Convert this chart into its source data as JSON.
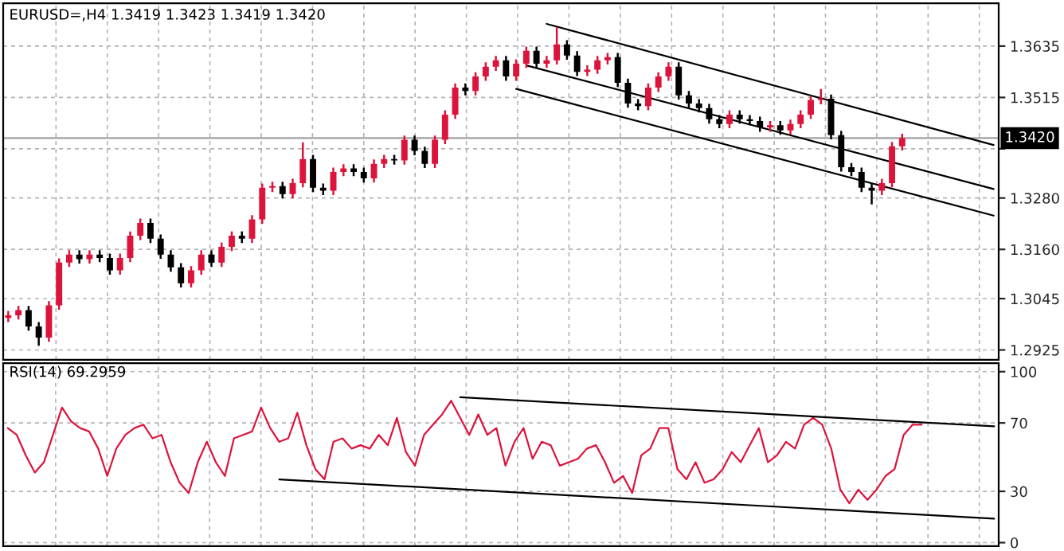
{
  "chart_data": [
    {
      "type": "candlestick",
      "title": "EURUSD=,H4 1.3419 1.3423 1.3419 1.3420",
      "categories": [
        null,
        null,
        null,
        null,
        null,
        null,
        null,
        null,
        null,
        null,
        null,
        null,
        null,
        null,
        null,
        null,
        null,
        null,
        null,
        null,
        null,
        null,
        null,
        null,
        null,
        null,
        null,
        null,
        null,
        null,
        null,
        null,
        null,
        null,
        null,
        null,
        null,
        null,
        null,
        null,
        null,
        null,
        null,
        null,
        null,
        null,
        null,
        null,
        null,
        null,
        null,
        null,
        null,
        null,
        null,
        null,
        null,
        null,
        null,
        null,
        null,
        null,
        null,
        null,
        null,
        null,
        null,
        null,
        null,
        null,
        null,
        null,
        null,
        null,
        null,
        null,
        null,
        null,
        null,
        null,
        null,
        null,
        null,
        null,
        null,
        null,
        null,
        null,
        null,
        null,
        null,
        null,
        null,
        null,
        null,
        null,
        null,
        null
      ],
      "ohlc": [
        [
          1.3,
          1.3016,
          1.299,
          1.3006
        ],
        [
          1.3006,
          1.3028,
          1.2996,
          1.3018
        ],
        [
          1.3018,
          1.3028,
          1.297,
          1.298
        ],
        [
          1.298,
          1.299,
          1.2935,
          1.2954
        ],
        [
          1.2954,
          1.3039,
          1.2944,
          1.3029
        ],
        [
          1.3029,
          1.3139,
          1.3019,
          1.3129
        ],
        [
          1.3129,
          1.3158,
          1.3119,
          1.3148
        ],
        [
          1.3148,
          1.3158,
          1.3127,
          1.3137
        ],
        [
          1.3137,
          1.3158,
          1.3127,
          1.3148
        ],
        [
          1.3148,
          1.3158,
          1.313,
          1.314
        ],
        [
          1.314,
          1.315,
          1.3101,
          1.3111
        ],
        [
          1.3111,
          1.315,
          1.3101,
          1.314
        ],
        [
          1.314,
          1.3202,
          1.313,
          1.3192
        ],
        [
          1.3192,
          1.3232,
          1.3182,
          1.3222
        ],
        [
          1.3222,
          1.3232,
          1.3175,
          1.3185
        ],
        [
          1.3185,
          1.3195,
          1.3138,
          1.3148
        ],
        [
          1.3148,
          1.3158,
          1.3108,
          1.3118
        ],
        [
          1.3118,
          1.3128,
          1.3071,
          1.3081
        ],
        [
          1.3081,
          1.3121,
          1.3071,
          1.3111
        ],
        [
          1.3111,
          1.3158,
          1.3101,
          1.3148
        ],
        [
          1.3148,
          1.3158,
          1.3119,
          1.3129
        ],
        [
          1.3129,
          1.3176,
          1.3119,
          1.3166
        ],
        [
          1.3166,
          1.3202,
          1.3156,
          1.3192
        ],
        [
          1.3192,
          1.3202,
          1.3175,
          1.3185
        ],
        [
          1.3185,
          1.324,
          1.3175,
          1.323
        ],
        [
          1.323,
          1.3314,
          1.322,
          1.3304
        ],
        [
          1.3304,
          1.3318,
          1.3294,
          1.3308
        ],
        [
          1.3308,
          1.3318,
          1.3279,
          1.3289
        ],
        [
          1.3289,
          1.3325,
          1.3279,
          1.3315
        ],
        [
          1.3315,
          1.341,
          1.3305,
          1.3371
        ],
        [
          1.3371,
          1.3381,
          1.3294,
          1.3304
        ],
        [
          1.3304,
          1.3314,
          1.3287,
          1.3297
        ],
        [
          1.3297,
          1.3351,
          1.3287,
          1.3341
        ],
        [
          1.3341,
          1.3359,
          1.3331,
          1.3349
        ],
        [
          1.3349,
          1.3359,
          1.3331,
          1.3341
        ],
        [
          1.3341,
          1.3351,
          1.3316,
          1.3326
        ],
        [
          1.3326,
          1.337,
          1.3316,
          1.336
        ],
        [
          1.336,
          1.3381,
          1.335,
          1.3371
        ],
        [
          1.3371,
          1.3381,
          1.3358,
          1.3368
        ],
        [
          1.3368,
          1.3426,
          1.3358,
          1.3416
        ],
        [
          1.3416,
          1.3426,
          1.338,
          1.339
        ],
        [
          1.339,
          1.34,
          1.335,
          1.336
        ],
        [
          1.336,
          1.3426,
          1.335,
          1.3416
        ],
        [
          1.3416,
          1.3485,
          1.3406,
          1.3475
        ],
        [
          1.3475,
          1.3548,
          1.3465,
          1.3538
        ],
        [
          1.3538,
          1.3548,
          1.352,
          1.353
        ],
        [
          1.353,
          1.3574,
          1.352,
          1.3564
        ],
        [
          1.3564,
          1.3597,
          1.3554,
          1.3587
        ],
        [
          1.3587,
          1.3612,
          1.3577,
          1.3602
        ],
        [
          1.3602,
          1.3612,
          1.3554,
          1.3564
        ],
        [
          1.3564,
          1.3604,
          1.3554,
          1.3594
        ],
        [
          1.3594,
          1.3634,
          1.3584,
          1.3624
        ],
        [
          1.3624,
          1.3634,
          1.3584,
          1.3594
        ],
        [
          1.3594,
          1.3612,
          1.3584,
          1.3602
        ],
        [
          1.3602,
          1.368,
          1.3592,
          1.3639
        ],
        [
          1.3639,
          1.3649,
          1.3603,
          1.3613
        ],
        [
          1.3613,
          1.3623,
          1.3565,
          1.3575
        ],
        [
          1.3575,
          1.359,
          1.3565,
          1.358
        ],
        [
          1.358,
          1.3612,
          1.357,
          1.3602
        ],
        [
          1.3602,
          1.3619,
          1.3592,
          1.3609
        ],
        [
          1.3609,
          1.3619,
          1.3539,
          1.3549
        ],
        [
          1.3549,
          1.3559,
          1.3491,
          1.3501
        ],
        [
          1.3501,
          1.3511,
          1.3485,
          1.3495
        ],
        [
          1.3495,
          1.3548,
          1.3485,
          1.3538
        ],
        [
          1.3538,
          1.3574,
          1.3528,
          1.3564
        ],
        [
          1.3564,
          1.3597,
          1.3554,
          1.3587
        ],
        [
          1.3587,
          1.3597,
          1.351,
          1.352
        ],
        [
          1.352,
          1.353,
          1.3491,
          1.3501
        ],
        [
          1.3501,
          1.3511,
          1.348,
          1.349
        ],
        [
          1.349,
          1.35,
          1.3454,
          1.3464
        ],
        [
          1.3464,
          1.3474,
          1.3443,
          1.3453
        ],
        [
          1.3453,
          1.3485,
          1.3443,
          1.3475
        ],
        [
          1.3475,
          1.3485,
          1.3454,
          1.3464
        ],
        [
          1.3464,
          1.3474,
          1.345,
          1.346
        ],
        [
          1.346,
          1.347,
          1.3435,
          1.3445
        ],
        [
          1.3445,
          1.346,
          1.3435,
          1.345
        ],
        [
          1.345,
          1.346,
          1.3428,
          1.3438
        ],
        [
          1.3438,
          1.3463,
          1.3428,
          1.3453
        ],
        [
          1.3453,
          1.3485,
          1.3443,
          1.3475
        ],
        [
          1.3475,
          1.3519,
          1.3465,
          1.3509
        ],
        [
          1.3509,
          1.3535,
          1.3499,
          1.3512
        ],
        [
          1.3512,
          1.3522,
          1.3417,
          1.3427
        ],
        [
          1.3427,
          1.3437,
          1.3342,
          1.3352
        ],
        [
          1.3352,
          1.3362,
          1.3331,
          1.3341
        ],
        [
          1.3341,
          1.3351,
          1.3294,
          1.3304
        ],
        [
          1.3304,
          1.3314,
          1.3265,
          1.3297
        ],
        [
          1.3297,
          1.3325,
          1.3287,
          1.3315
        ],
        [
          1.3315,
          1.3411,
          1.3305,
          1.3401
        ],
        [
          1.3401,
          1.343,
          1.3391,
          1.342
        ],
        null,
        null,
        null,
        null,
        null,
        null,
        null,
        null,
        null
      ],
      "colors": [
        "#dc143c",
        "#dc143c",
        "#000000",
        "#000000",
        "#dc143c",
        "#dc143c",
        "#dc143c",
        "#000000",
        "#dc143c",
        "#000000",
        "#000000",
        "#dc143c",
        "#dc143c",
        "#dc143c",
        "#000000",
        "#000000",
        "#000000",
        "#000000",
        "#dc143c",
        "#dc143c",
        "#000000",
        "#dc143c",
        "#dc143c",
        "#000000",
        "#dc143c",
        "#dc143c",
        "#dc143c",
        "#000000",
        "#dc143c",
        "#dc143c",
        "#000000",
        "#000000",
        "#dc143c",
        "#dc143c",
        "#000000",
        "#000000",
        "#dc143c",
        "#dc143c",
        "#000000",
        "#dc143c",
        "#000000",
        "#000000",
        "#dc143c",
        "#dc143c",
        "#dc143c",
        "#000000",
        "#dc143c",
        "#dc143c",
        "#dc143c",
        "#000000",
        "#dc143c",
        "#dc143c",
        "#000000",
        "#dc143c",
        "#dc143c",
        "#000000",
        "#000000",
        "#dc143c",
        "#dc143c",
        "#dc143c",
        "#000000",
        "#000000",
        "#000000",
        "#dc143c",
        "#dc143c",
        "#dc143c",
        "#000000",
        "#000000",
        "#000000",
        "#000000",
        "#000000",
        "#dc143c",
        "#000000",
        "#000000",
        "#000000",
        "#dc143c",
        "#000000",
        "#dc143c",
        "#dc143c",
        "#dc143c",
        "#dc143c",
        "#000000",
        "#000000",
        "#000000",
        "#000000",
        "#000000",
        "#dc143c",
        "#dc143c",
        "#dc143c",
        null,
        null,
        null,
        null,
        null,
        null,
        null,
        null,
        null
      ],
      "series": [
        {
          "type": "line",
          "color": "#000000",
          "values": [
            null,
            null,
            null,
            null,
            null,
            null,
            null,
            null,
            null,
            null,
            null,
            null,
            null,
            null,
            null,
            null,
            null,
            null,
            null,
            null,
            null,
            null,
            null,
            null,
            null,
            null,
            null,
            null,
            null,
            null,
            null,
            null,
            null,
            null,
            null,
            null,
            null,
            null,
            null,
            null,
            null,
            null,
            null,
            null,
            null,
            null,
            null,
            null,
            null,
            null,
            null,
            null,
            null,
            1.3687,
            null,
            null,
            null,
            null,
            null,
            null,
            null,
            null,
            null,
            null,
            null,
            null,
            null,
            null,
            null,
            null,
            null,
            null,
            null,
            null,
            null,
            null,
            null,
            null,
            null,
            null,
            null,
            null,
            null,
            null,
            null,
            null,
            null,
            null,
            null,
            null,
            null,
            null,
            null,
            null,
            null,
            null,
            null,
            1.3404
          ]
        },
        {
          "type": "line",
          "color": "#000000",
          "values": [
            null,
            null,
            null,
            null,
            null,
            null,
            null,
            null,
            null,
            null,
            null,
            null,
            null,
            null,
            null,
            null,
            null,
            null,
            null,
            null,
            null,
            null,
            null,
            null,
            null,
            null,
            null,
            null,
            null,
            null,
            null,
            null,
            null,
            null,
            null,
            null,
            null,
            null,
            null,
            null,
            null,
            null,
            null,
            null,
            null,
            null,
            null,
            null,
            null,
            null,
            null,
            1.359,
            null,
            null,
            null,
            null,
            null,
            null,
            null,
            null,
            null,
            null,
            null,
            null,
            null,
            null,
            null,
            null,
            null,
            null,
            null,
            null,
            null,
            null,
            null,
            null,
            null,
            null,
            null,
            null,
            null,
            null,
            null,
            null,
            null,
            null,
            null,
            null,
            null,
            null,
            null,
            null,
            null,
            null,
            null,
            null,
            null,
            1.3301
          ]
        },
        {
          "type": "line",
          "color": "#000000",
          "values": [
            null,
            null,
            null,
            null,
            null,
            null,
            null,
            null,
            null,
            null,
            null,
            null,
            null,
            null,
            null,
            null,
            null,
            null,
            null,
            null,
            null,
            null,
            null,
            null,
            null,
            null,
            null,
            null,
            null,
            null,
            null,
            null,
            null,
            null,
            null,
            null,
            null,
            null,
            null,
            null,
            null,
            null,
            null,
            null,
            null,
            null,
            null,
            null,
            null,
            null,
            1.3535,
            null,
            null,
            null,
            null,
            null,
            null,
            null,
            null,
            null,
            null,
            null,
            null,
            null,
            null,
            null,
            null,
            null,
            null,
            null,
            null,
            null,
            null,
            null,
            null,
            null,
            null,
            null,
            null,
            null,
            null,
            null,
            null,
            null,
            null,
            null,
            null,
            null,
            null,
            null,
            null,
            null,
            null,
            null,
            null,
            null,
            null,
            1.3239
          ]
        }
      ],
      "ylim": [
        1.2902,
        1.3735
      ],
      "yticks": [
        {
          "value": 1.2925,
          "label": "1.2925"
        },
        {
          "value": 1.3045,
          "label": "1.3045"
        },
        {
          "value": 1.316,
          "label": "1.3160"
        },
        {
          "value": 1.328,
          "label": "1.3280"
        },
        {
          "value": 1.3395,
          "label": null
        },
        {
          "value": 1.3515,
          "label": "1.3515"
        },
        {
          "value": 1.3635,
          "label": "1.3635"
        }
      ],
      "ref_lines": [
        {
          "axis": "y",
          "value": 1.342,
          "label": "1.3420",
          "color": "#a0a0a0"
        }
      ],
      "grid": true,
      "tick_labels": "y"
    },
    {
      "type": "line",
      "title": "RSI(14) 69.2959",
      "categories": [
        null,
        null,
        null,
        null,
        null,
        null,
        null,
        null,
        null,
        null,
        null,
        null,
        null,
        null,
        null,
        null,
        null,
        null,
        null,
        null,
        null,
        null,
        null,
        null,
        null,
        null,
        null,
        null,
        null,
        null,
        null,
        null,
        null,
        null,
        null,
        null,
        null,
        null,
        null,
        null,
        null,
        null,
        null,
        null,
        null,
        null,
        null,
        null,
        null,
        null,
        null,
        null,
        null,
        null,
        null,
        null,
        null,
        null,
        null,
        null,
        null,
        null,
        null,
        null,
        null,
        null,
        null,
        null,
        null,
        null,
        null,
        null,
        null,
        null,
        null,
        null,
        null,
        null,
        null,
        null,
        null,
        null,
        null,
        null,
        null,
        null,
        null,
        null,
        null,
        null,
        null,
        null,
        null,
        null,
        null,
        null,
        null,
        null,
        null,
        null,
        null,
        null,
        null,
        null,
        null,
        null,
        null,
        null,
        null,
        null
      ],
      "series": [
        {
          "type": "line",
          "color": "#dc143c",
          "values": [
            67,
            63,
            51,
            41,
            47,
            63,
            79,
            71,
            67,
            65,
            55,
            39,
            55,
            63,
            67,
            69,
            61,
            63,
            47,
            35,
            29,
            47,
            59,
            47,
            39,
            61,
            63,
            65,
            79,
            67,
            59,
            61,
            76,
            57,
            43,
            37,
            59,
            61,
            55,
            57,
            55,
            63,
            57,
            73,
            53,
            45,
            63,
            69,
            75,
            83,
            73,
            63,
            75,
            63,
            67,
            45,
            59,
            67,
            49,
            59,
            57,
            45,
            47,
            49,
            55,
            57,
            47,
            35,
            39,
            29,
            51,
            55,
            67,
            67,
            43,
            37,
            47,
            35,
            37,
            43,
            53,
            47,
            57,
            67,
            47,
            51,
            59,
            55,
            69,
            73,
            69,
            55,
            31,
            23,
            31,
            25,
            31,
            39,
            43,
            63,
            69,
            69,
            null,
            null,
            null,
            null,
            null,
            null,
            null,
            null
          ]
        },
        {
          "type": "line",
          "color": "#000000",
          "values": [
            null,
            null,
            null,
            null,
            null,
            null,
            null,
            null,
            null,
            null,
            null,
            null,
            null,
            null,
            null,
            null,
            null,
            null,
            null,
            null,
            null,
            null,
            null,
            null,
            null,
            null,
            null,
            null,
            null,
            null,
            null,
            null,
            null,
            null,
            null,
            null,
            null,
            null,
            null,
            null,
            null,
            null,
            null,
            null,
            null,
            null,
            null,
            null,
            null,
            null,
            85,
            null,
            null,
            null,
            null,
            null,
            null,
            null,
            null,
            null,
            null,
            null,
            null,
            null,
            null,
            null,
            null,
            null,
            null,
            null,
            null,
            null,
            null,
            null,
            null,
            null,
            null,
            null,
            null,
            null,
            null,
            null,
            null,
            null,
            null,
            null,
            null,
            null,
            null,
            null,
            null,
            null,
            null,
            null,
            null,
            null,
            null,
            null,
            null,
            null,
            null,
            null,
            null,
            null,
            null,
            null,
            null,
            null,
            null,
            68
          ]
        },
        {
          "type": "line",
          "color": "#000000",
          "values": [
            null,
            null,
            null,
            null,
            null,
            null,
            null,
            null,
            null,
            null,
            null,
            null,
            null,
            null,
            null,
            null,
            null,
            null,
            null,
            null,
            null,
            null,
            null,
            null,
            null,
            null,
            null,
            null,
            null,
            null,
            37,
            null,
            null,
            null,
            null,
            null,
            null,
            null,
            null,
            null,
            null,
            null,
            null,
            null,
            null,
            null,
            null,
            null,
            null,
            null,
            null,
            null,
            null,
            null,
            null,
            null,
            null,
            null,
            null,
            null,
            null,
            null,
            null,
            null,
            null,
            null,
            null,
            null,
            null,
            null,
            null,
            null,
            null,
            null,
            null,
            null,
            null,
            null,
            null,
            null,
            null,
            null,
            null,
            null,
            null,
            null,
            null,
            null,
            null,
            null,
            null,
            null,
            null,
            null,
            null,
            null,
            null,
            null,
            null,
            null,
            null,
            null,
            null,
            null,
            null,
            null,
            null,
            null,
            null,
            14
          ]
        }
      ],
      "ylim": [
        -2,
        105
      ],
      "yticks": [
        0,
        30,
        70,
        100
      ],
      "grid": true,
      "tick_labels": "y"
    }
  ]
}
